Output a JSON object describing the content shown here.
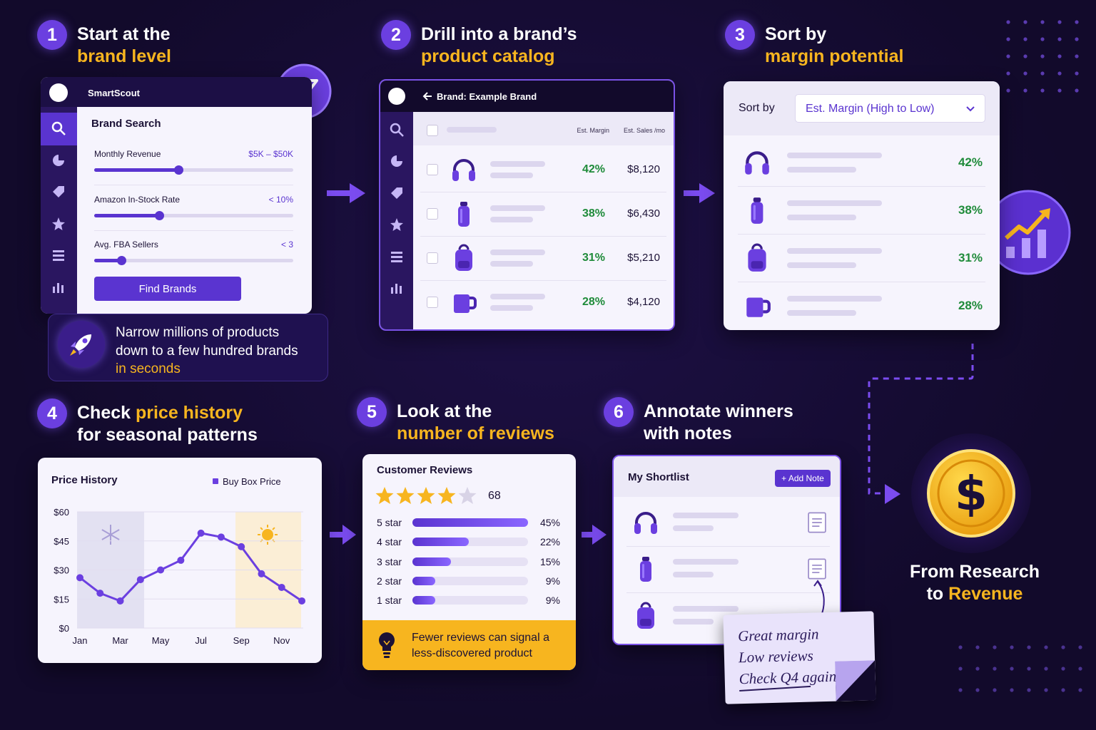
{
  "steps": [
    {
      "number": "1",
      "title": [
        [
          {
            "text": "Start at the"
          }
        ],
        [
          {
            "text": "brand level",
            "highlight": true
          }
        ]
      ]
    },
    {
      "number": "2",
      "title": [
        [
          {
            "text": "Drill into a brand’s"
          }
        ],
        [
          {
            "text": "product catalog",
            "highlight": true
          }
        ]
      ]
    },
    {
      "number": "3",
      "title": [
        [
          {
            "text": "Sort by"
          }
        ],
        [
          {
            "text": "margin potential",
            "highlight": true
          }
        ]
      ]
    },
    {
      "number": "4",
      "title": [
        [
          {
            "text": "Check "
          },
          {
            "text": "price history",
            "highlight": true
          }
        ],
        [
          {
            "text": "for seasonal patterns"
          }
        ]
      ]
    },
    {
      "number": "5",
      "title": [
        [
          {
            "text": "Look at the"
          }
        ],
        [
          {
            "text": "number of reviews",
            "highlight": true
          }
        ]
      ]
    },
    {
      "number": "6",
      "title": [
        [
          {
            "text": "Annotate winners"
          }
        ],
        [
          {
            "text": "with notes"
          }
        ]
      ]
    }
  ],
  "brand_search": {
    "app": "SmartScout",
    "heading": "Brand Search",
    "filters": [
      {
        "label": "Monthly Revenue",
        "value": "$5K – $50K"
      },
      {
        "label": "Amazon In-Stock Rate",
        "value": "< 10%"
      },
      {
        "label": "Avg. FBA Sellers",
        "value": "< 3"
      }
    ],
    "button": "Find Brands"
  },
  "callout": [
    [
      {
        "text": "Narrow millions of products"
      }
    ],
    [
      {
        "text": "down to a few hundred brands"
      }
    ],
    [
      {
        "text": "in seconds",
        "highlight": true
      }
    ]
  ],
  "catalog": {
    "header": "Brand: Example Brand",
    "columns": [
      "Est. Margin",
      "Est. Sales /mo"
    ],
    "rows": [
      [
        "42%",
        "$8,120"
      ],
      [
        "38%",
        "$6,430"
      ],
      [
        "31%",
        "$5,210"
      ],
      [
        "28%",
        "$4,120"
      ]
    ]
  },
  "sort": {
    "label": "Sort by",
    "option": "Est. Margin (High to Low)",
    "rows": [
      "42%",
      "38%",
      "31%",
      "28%"
    ]
  },
  "chart_data": {
    "type": "line",
    "title": "Price History",
    "categories": [
      "Jan",
      null,
      "Mar",
      null,
      "May",
      null,
      "Jul",
      null,
      "Sep",
      null,
      "Nov",
      null
    ],
    "series": [
      {
        "name": "Buy Box Price",
        "color": "#6b3fe0",
        "values": [
          26,
          18,
          14,
          25,
          30,
          35,
          49,
          47,
          42,
          28,
          21,
          14
        ]
      }
    ],
    "ylim": [
      0,
      60
    ],
    "yticks": [
      {
        "value": 0,
        "label": "$0"
      },
      {
        "value": 15,
        "label": "$15"
      },
      {
        "value": 30,
        "label": "$30"
      },
      {
        "value": 45,
        "label": "$45"
      },
      {
        "value": 60,
        "label": "$60"
      }
    ],
    "grid": true
  },
  "reviews": {
    "title": "Customer Reviews",
    "count": "68",
    "categories": [
      "5 star",
      "4 star",
      "3 star",
      "2 star",
      "1 star"
    ],
    "values": [
      45,
      22,
      15,
      9,
      9
    ],
    "value_labels": [
      "45%",
      "22%",
      "15%",
      "9%",
      "9%"
    ],
    "tip": [
      [
        {
          "text": "Fewer reviews can signal a"
        }
      ],
      [
        {
          "text": "less-discovered product"
        }
      ]
    ]
  },
  "shortlist": {
    "title": "My Shortlist",
    "button": "+ Add Note",
    "note": [
      "Great margin",
      "Low reviews",
      "Check Q4 again"
    ]
  },
  "final": [
    [
      {
        "text": "From Research"
      }
    ],
    [
      {
        "text": "to "
      },
      {
        "text": "Revenue",
        "highlight": true
      }
    ]
  ]
}
